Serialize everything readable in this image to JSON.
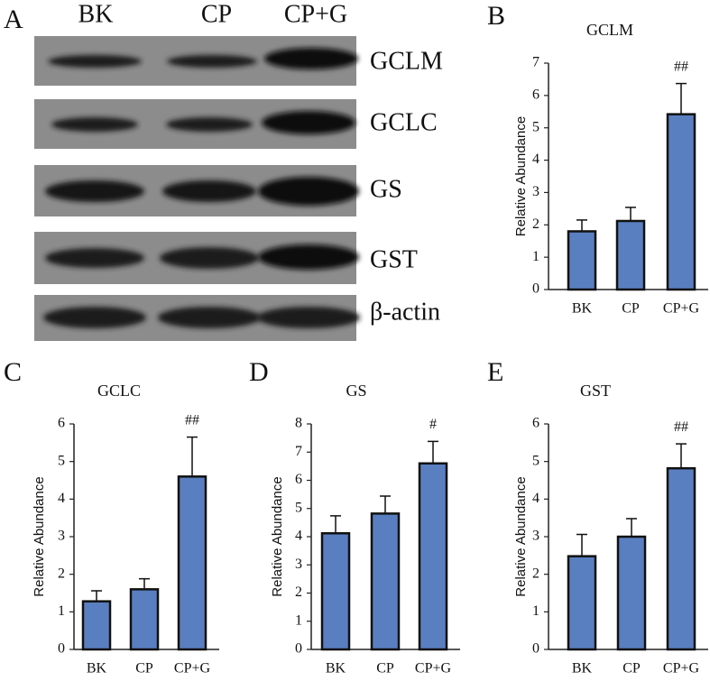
{
  "panel_a": {
    "label": "A",
    "lanes": [
      "BK",
      "CP",
      "CP+G"
    ],
    "proteins": [
      "GCLM",
      "GCLC",
      "GS",
      "GST",
      "β-actin"
    ]
  },
  "chart_data": [
    {
      "type": "bar",
      "panel": "B",
      "title": "GCLM",
      "y_label": "Relative Abundance",
      "categories": [
        "BK",
        "CP",
        "CP+G"
      ],
      "values": [
        1.8,
        2.12,
        5.42
      ],
      "errors": [
        0.35,
        0.42,
        0.95
      ],
      "significance": [
        null,
        null,
        "##"
      ],
      "color": "#5a7fc1",
      "ylim": [
        0,
        7
      ],
      "yticks": [
        0,
        1,
        2,
        3,
        4,
        5,
        6,
        7
      ]
    },
    {
      "type": "bar",
      "panel": "C",
      "title": "GCLC",
      "y_label": "Relative Abundance",
      "categories": [
        "BK",
        "CP",
        "CP+G"
      ],
      "values": [
        1.28,
        1.6,
        4.6
      ],
      "errors": [
        0.28,
        0.28,
        1.05
      ],
      "significance": [
        null,
        null,
        "##"
      ],
      "color": "#5a7fc1",
      "ylim": [
        0,
        6
      ],
      "yticks": [
        0,
        1,
        2,
        3,
        4,
        5,
        6
      ]
    },
    {
      "type": "bar",
      "panel": "D",
      "title": "GS",
      "y_label": "Relative Abundance",
      "categories": [
        "BK",
        "CP",
        "CP+G"
      ],
      "values": [
        4.12,
        4.82,
        6.6
      ],
      "errors": [
        0.62,
        0.62,
        0.78
      ],
      "significance": [
        null,
        null,
        "#"
      ],
      "color": "#5a7fc1",
      "ylim": [
        0,
        8
      ],
      "yticks": [
        0,
        1,
        2,
        3,
        4,
        5,
        6,
        7,
        8
      ]
    },
    {
      "type": "bar",
      "panel": "E",
      "title": "GST",
      "y_label": "Relative Abundance",
      "categories": [
        "BK",
        "CP",
        "CP+G"
      ],
      "values": [
        2.48,
        3.0,
        4.82
      ],
      "errors": [
        0.58,
        0.48,
        0.65
      ],
      "significance": [
        null,
        null,
        "##"
      ],
      "color": "#5a7fc1",
      "ylim": [
        0,
        6
      ],
      "yticks": [
        0,
        1,
        2,
        3,
        4,
        5,
        6
      ]
    }
  ]
}
